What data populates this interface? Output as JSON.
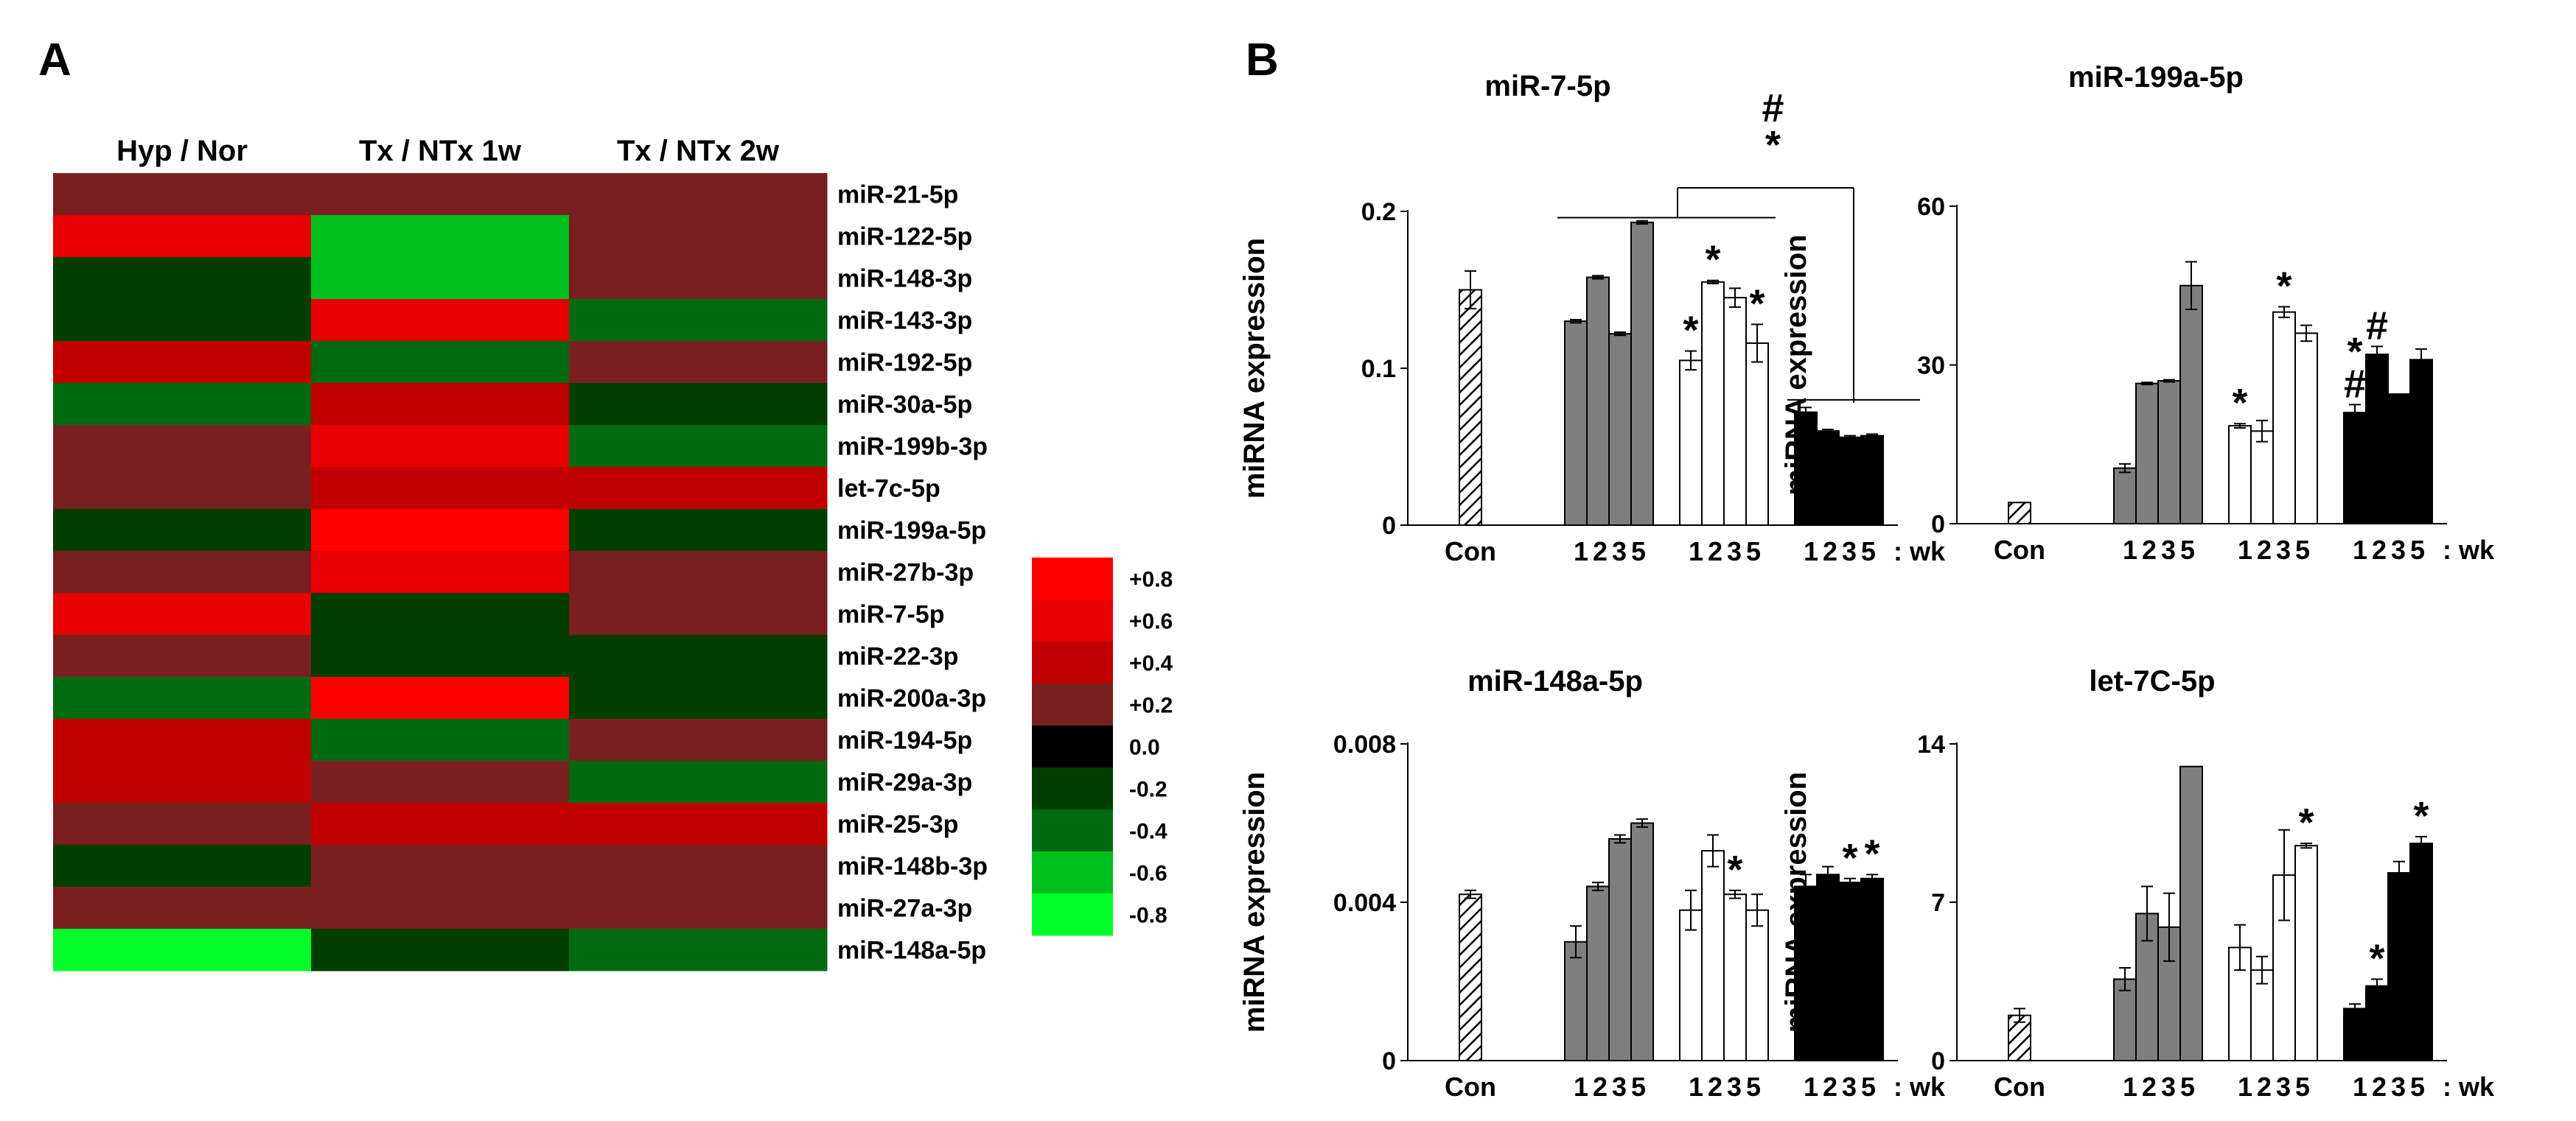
{
  "panel_a_label": "A",
  "panel_b_label": "B",
  "colors": {
    "gray_bar": "#7f7f7f",
    "white_bar": "#ffffff",
    "black_bar": "#000000",
    "heat_scale": [
      "#ff0000",
      "#e60000",
      "#c00000",
      "#7a1f1f",
      "#000000",
      "#003f00",
      "#006a10",
      "#00c020",
      "#00ff2a"
    ]
  },
  "chart_data": [
    {
      "type": "heatmap",
      "title": "",
      "columns": [
        "Hyp / Nor",
        "Tx / NTx 1w",
        "Tx / NTx 2w"
      ],
      "rows": [
        "miR-21-5p",
        "miR-122-5p",
        "miR-148-3p",
        "miR-143-3p",
        "miR-192-5p",
        "miR-30a-5p",
        "miR-199b-3p",
        "let-7c-5p",
        "miR-199a-5p",
        "miR-27b-3p",
        "miR-7-5p",
        "miR-22-3p",
        "miR-200a-3p",
        "miR-194-5p",
        "miR-29a-3p",
        "miR-25-3p",
        "miR-148b-3p",
        "miR-27a-3p",
        "miR-148a-5p"
      ],
      "values": [
        [
          0.2,
          0.2,
          0.2
        ],
        [
          0.6,
          -0.6,
          0.2
        ],
        [
          -0.2,
          -0.6,
          0.2
        ],
        [
          -0.2,
          0.6,
          -0.4
        ],
        [
          0.4,
          -0.4,
          0.2
        ],
        [
          -0.4,
          0.4,
          -0.2
        ],
        [
          0.2,
          0.6,
          -0.4
        ],
        [
          0.2,
          0.4,
          0.4
        ],
        [
          -0.2,
          0.8,
          -0.2
        ],
        [
          0.2,
          0.6,
          0.2
        ],
        [
          0.6,
          -0.2,
          0.2
        ],
        [
          0.2,
          -0.2,
          -0.2
        ],
        [
          -0.4,
          0.8,
          -0.2
        ],
        [
          0.4,
          -0.4,
          0.2
        ],
        [
          0.4,
          0.2,
          -0.4
        ],
        [
          0.2,
          0.4,
          0.4
        ],
        [
          -0.2,
          0.2,
          0.2
        ],
        [
          0.2,
          0.2,
          0.2
        ],
        [
          -0.8,
          -0.2,
          -0.4
        ]
      ],
      "scale_values": [
        0.8,
        0.6,
        0.4,
        0.2,
        0.0,
        -0.2,
        -0.4,
        -0.6,
        -0.8
      ],
      "scale_labels": [
        "+0.8",
        "+0.6",
        "+0.4",
        "+0.2",
        "0.0",
        "-0.2",
        "-0.4",
        "-0.6",
        "-0.8"
      ]
    },
    {
      "type": "bar",
      "title": "miR-7-5p",
      "ylabel": "miRNA expression",
      "ylim": [
        0,
        0.2
      ],
      "yticks": [
        0,
        0.1,
        0.2
      ],
      "ytick_labels": [
        "0",
        "0.1",
        "0.2"
      ],
      "con_label": "Con",
      "group_tick_label": "1 2 3 5",
      "wk_label": ": wk",
      "con": {
        "value": 0.15,
        "error": 0.012
      },
      "series": [
        {
          "name": "gray",
          "weeks": [
            "1",
            "2",
            "3",
            "5"
          ],
          "values": [
            0.13,
            0.158,
            0.122,
            0.193
          ],
          "errors": [
            0.001,
            0.001,
            0.001,
            0.001
          ]
        },
        {
          "name": "white",
          "weeks": [
            "1",
            "2",
            "3",
            "5"
          ],
          "values": [
            0.105,
            0.155,
            0.145,
            0.116
          ],
          "errors": [
            0.006,
            0.001,
            0.006,
            0.012
          ]
        },
        {
          "name": "black",
          "weeks": [
            "1",
            "2",
            "3",
            "5"
          ],
          "values": [
            0.072,
            0.06,
            0.056,
            0.057
          ],
          "errors": [
            0.003,
            0.001,
            0.001,
            0.001
          ]
        }
      ],
      "markers": [
        {
          "series": 1,
          "index": 0,
          "text": "*"
        },
        {
          "series": 1,
          "index": 1,
          "text": "*"
        },
        {
          "series": 1,
          "index": 3,
          "text": "*"
        }
      ],
      "bracket": {
        "marks": [
          "#",
          "*"
        ]
      }
    },
    {
      "type": "bar",
      "title": "miR-199a-5p",
      "ylabel": "miRNA expression",
      "ylim": [
        0,
        60
      ],
      "yticks": [
        0,
        30,
        60
      ],
      "ytick_labels": [
        "0",
        "30",
        "60"
      ],
      "con_label": "Con",
      "group_tick_label": "1 2 3 5",
      "wk_label": ": wk",
      "con": {
        "value": 4.0,
        "error": 0
      },
      "series": [
        {
          "name": "gray",
          "weeks": [
            "1",
            "2",
            "3",
            "5"
          ],
          "values": [
            10.5,
            26.5,
            27.0,
            45.0
          ],
          "errors": [
            0.8,
            0.2,
            0.2,
            4.5
          ]
        },
        {
          "name": "white",
          "weeks": [
            "1",
            "2",
            "3",
            "5"
          ],
          "values": [
            18.5,
            17.5,
            40.0,
            36.0
          ],
          "errors": [
            0.4,
            2.0,
            1.0,
            1.5
          ]
        },
        {
          "name": "black",
          "weeks": [
            "1",
            "2",
            "3",
            "5"
          ],
          "values": [
            21.0,
            32.0,
            24.5,
            31.0
          ],
          "errors": [
            1.5,
            1.5,
            0,
            2.0
          ]
        }
      ],
      "markers": [
        {
          "series": 1,
          "index": 0,
          "text": "*"
        },
        {
          "series": 1,
          "index": 2,
          "text": "*"
        },
        {
          "series": 2,
          "index": 0,
          "text": "#"
        },
        {
          "series": 2,
          "index": 0,
          "text": "*"
        },
        {
          "series": 2,
          "index": 1,
          "text": "#"
        }
      ]
    },
    {
      "type": "bar",
      "title": "miR-148a-5p",
      "ylabel": "miRNA expression",
      "ylim": [
        0,
        0.008
      ],
      "yticks": [
        0,
        0.004,
        0.008
      ],
      "ytick_labels": [
        "0",
        "0.004",
        "0.008"
      ],
      "con_label": "Con",
      "group_tick_label": "1 2 3 5",
      "wk_label": ": wk",
      "con": {
        "value": 0.0042,
        "error": 0.0001
      },
      "series": [
        {
          "name": "gray",
          "weeks": [
            "1",
            "2",
            "3",
            "5"
          ],
          "values": [
            0.003,
            0.0044,
            0.0056,
            0.006
          ],
          "errors": [
            0.0004,
            0.0001,
            0.0001,
            0.0001
          ]
        },
        {
          "name": "white",
          "weeks": [
            "1",
            "2",
            "3",
            "5"
          ],
          "values": [
            0.0038,
            0.0053,
            0.0042,
            0.0038
          ],
          "errors": [
            0.0005,
            0.0004,
            0.0001,
            0.0004
          ]
        },
        {
          "name": "black",
          "weeks": [
            "1",
            "2",
            "3",
            "5"
          ],
          "values": [
            0.0044,
            0.0047,
            0.0045,
            0.0046
          ],
          "errors": [
            0.0003,
            0.0002,
            0.0001,
            0.0001
          ]
        }
      ],
      "markers": [
        {
          "series": 1,
          "index": 2,
          "text": "*"
        },
        {
          "series": 2,
          "index": 2,
          "text": "*"
        },
        {
          "series": 2,
          "index": 3,
          "text": "*"
        }
      ]
    },
    {
      "type": "bar",
      "title": "let-7C-5p",
      "ylabel": "miRNA expression",
      "ylim": [
        0,
        14
      ],
      "yticks": [
        0,
        7,
        14
      ],
      "ytick_labels": [
        "0",
        "7",
        "14"
      ],
      "con_label": "Con",
      "group_tick_label": "1 2 3 5",
      "wk_label": ": wk",
      "con": {
        "value": 2.0,
        "error": 0.3
      },
      "series": [
        {
          "name": "gray",
          "weeks": [
            "1",
            "2",
            "3",
            "5"
          ],
          "values": [
            3.6,
            6.5,
            5.9,
            13.0
          ],
          "errors": [
            0.5,
            1.2,
            1.5,
            0
          ]
        },
        {
          "name": "white",
          "weeks": [
            "1",
            "2",
            "3",
            "5"
          ],
          "values": [
            5.0,
            4.0,
            8.2,
            9.5
          ],
          "errors": [
            1.0,
            0.6,
            2.0,
            0.1
          ]
        },
        {
          "name": "black",
          "weeks": [
            "1",
            "2",
            "3",
            "5"
          ],
          "values": [
            2.3,
            3.3,
            8.3,
            9.6
          ],
          "errors": [
            0.2,
            0.3,
            0.5,
            0.3
          ]
        }
      ],
      "markers": [
        {
          "series": 1,
          "index": 3,
          "text": "*"
        },
        {
          "series": 2,
          "index": 1,
          "text": "*"
        },
        {
          "series": 2,
          "index": 3,
          "text": "*"
        }
      ]
    }
  ]
}
